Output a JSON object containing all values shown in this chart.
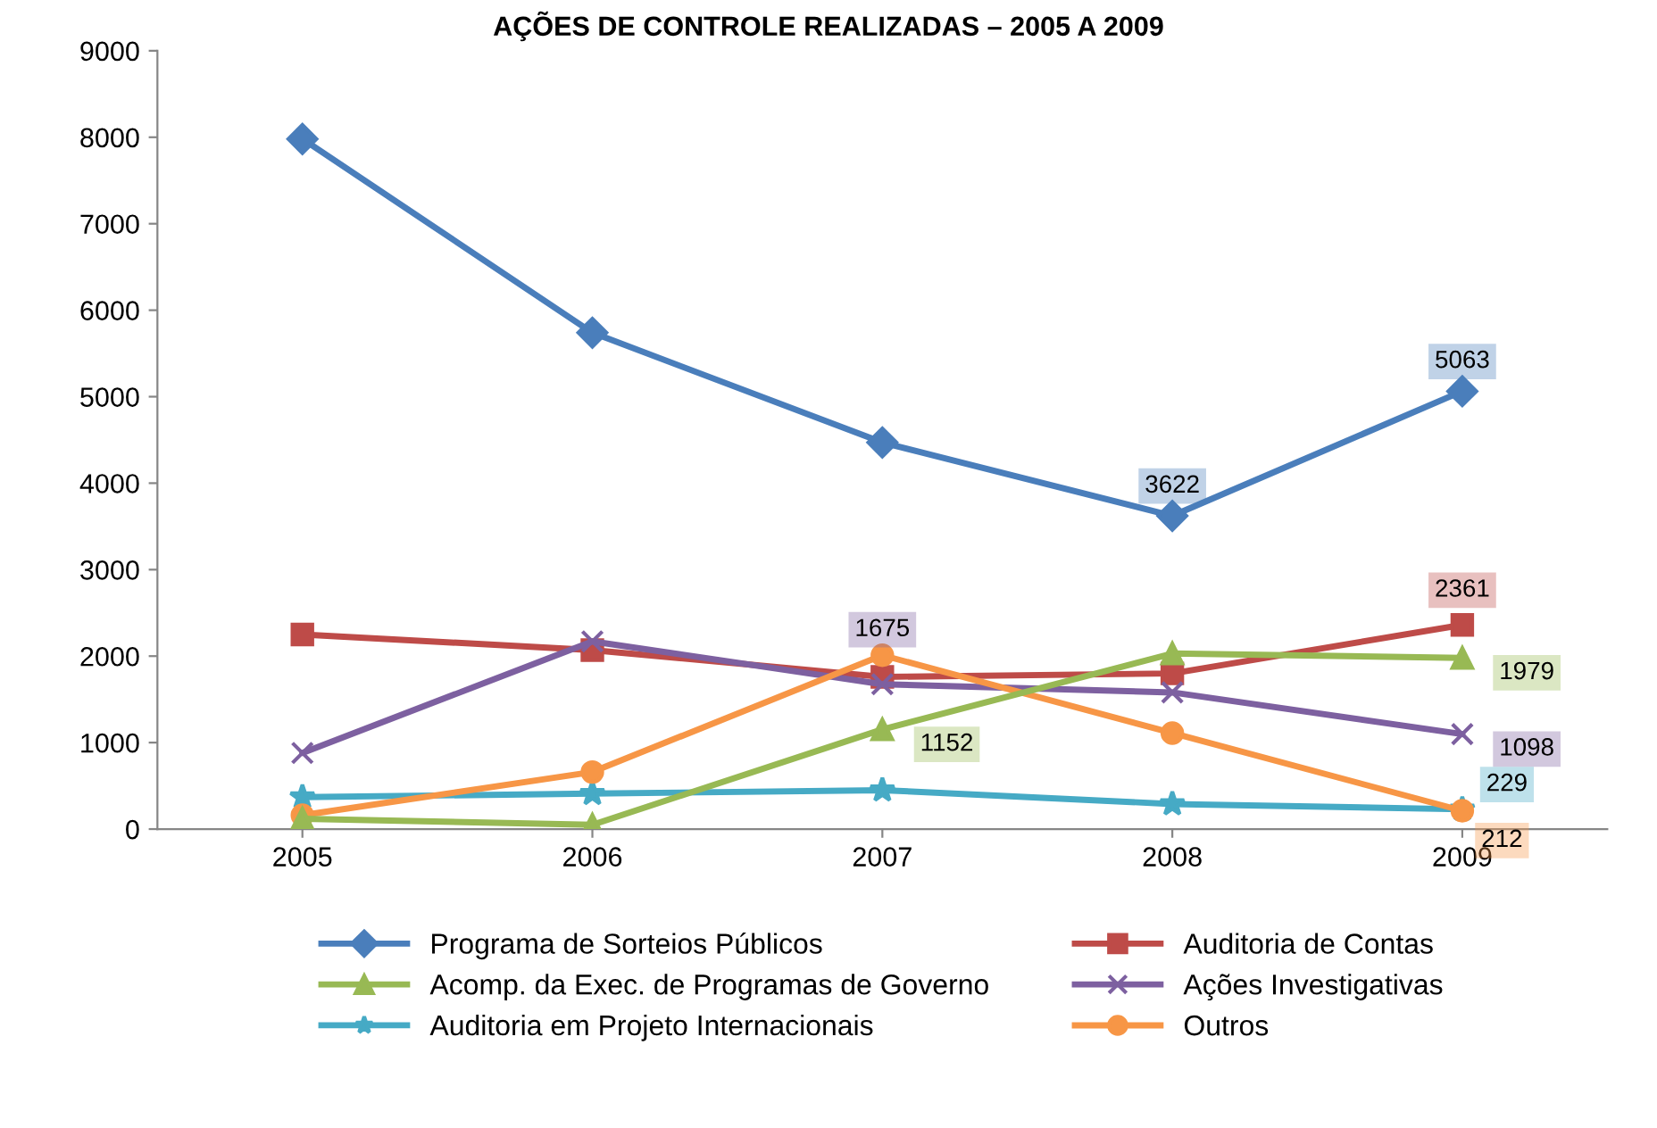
{
  "chart_data": {
    "type": "line",
    "title": "AÇÕES DE CONTROLE REALIZADAS – 2005 A 2009",
    "categories": [
      "2005",
      "2006",
      "2007",
      "2008",
      "2009"
    ],
    "ylim": [
      0,
      9000
    ],
    "yticks": [
      0,
      1000,
      2000,
      3000,
      4000,
      5000,
      6000,
      7000,
      8000,
      9000
    ],
    "grid": false,
    "legend": "bottom",
    "series": [
      {
        "name": "Programa de Sorteios Públicos",
        "color": "#4a7ebb",
        "marker": "diamond",
        "values": [
          7980,
          5740,
          4470,
          3622,
          5063
        ],
        "value_labels": [
          null,
          null,
          null,
          "3622",
          "5063"
        ]
      },
      {
        "name": "Auditoria de Contas",
        "color": "#be4b48",
        "marker": "square",
        "values": [
          2250,
          2070,
          1760,
          1800,
          2361
        ],
        "value_labels": [
          null,
          null,
          null,
          null,
          "2361"
        ]
      },
      {
        "name": "Acomp. da Exec. de Programas de Governo",
        "color": "#98b954",
        "marker": "triangle",
        "values": [
          120,
          50,
          1152,
          2030,
          1979
        ],
        "value_labels": [
          null,
          null,
          "1152",
          null,
          "1979"
        ]
      },
      {
        "name": "Ações Investigativas",
        "color": "#7d60a0",
        "marker": "cross",
        "values": [
          880,
          2170,
          1675,
          1580,
          1098
        ],
        "value_labels": [
          null,
          null,
          "1675",
          null,
          "1098"
        ]
      },
      {
        "name": "Auditoria em Projeto Internacionais",
        "color": "#46aac5",
        "marker": "star",
        "values": [
          370,
          410,
          450,
          290,
          229
        ],
        "value_labels": [
          null,
          null,
          null,
          null,
          "229"
        ]
      },
      {
        "name": "Outros",
        "color": "#f79646",
        "marker": "circle",
        "values": [
          160,
          660,
          2010,
          1110,
          212
        ],
        "value_labels": [
          null,
          null,
          null,
          null,
          "212"
        ]
      }
    ]
  }
}
